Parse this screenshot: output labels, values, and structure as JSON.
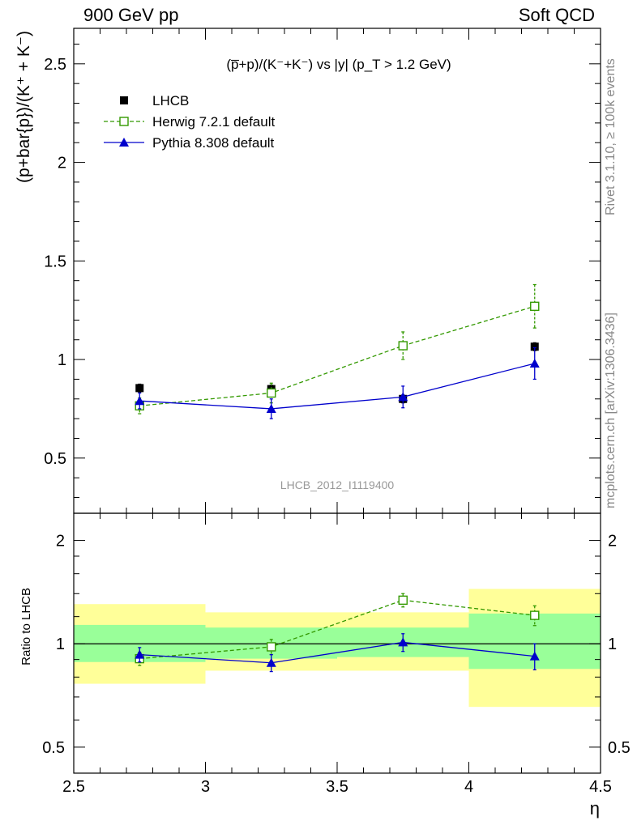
{
  "header": {
    "left": "900 GeV pp",
    "right": "Soft QCD"
  },
  "side_labels": {
    "rivet": "Rivet 3.1.10, ≥ 100k events",
    "mcplots": "mcplots.cern.ch [arXiv:1306.3436]"
  },
  "chart_data": [
    {
      "type": "scatter",
      "panel": "main",
      "title": "(p̅+p)/(K⁻+K⁻) vs |y| (p_T > 1.2 GeV)",
      "watermark": "LHCB_2012_I1119400",
      "xlabel": "η",
      "ylabel": "(p+bar{p})/(K⁺ + K⁻)",
      "xlim": [
        2.5,
        4.5
      ],
      "ylim": [
        0.22,
        2.68
      ],
      "xticks": [
        2.5,
        3,
        3.5,
        4,
        4.5
      ],
      "xtick_labels": [
        "2.5",
        "3",
        "3.5",
        "4",
        "4.5"
      ],
      "yticks": [
        0.5,
        1,
        1.5,
        2,
        2.5
      ],
      "ytick_labels": [
        "0.5",
        "1",
        "1.5",
        "2",
        "2.5"
      ],
      "legend_position": "top-left",
      "series": [
        {
          "name": "LHCB",
          "color": "#000000",
          "marker": "filled-square",
          "line": "none",
          "x": [
            2.75,
            3.25,
            3.75,
            4.25
          ],
          "y": [
            0.855,
            0.85,
            0.8,
            1.065
          ],
          "yerr": [
            0.02,
            0.02,
            0.02,
            0.02
          ]
        },
        {
          "name": "Herwig 7.2.1 default",
          "color": "#339900",
          "marker": "open-square",
          "line": "dashed",
          "x": [
            2.75,
            3.25,
            3.75,
            4.25
          ],
          "y": [
            0.765,
            0.83,
            1.07,
            1.27
          ],
          "yerr": [
            0.04,
            0.05,
            0.07,
            0.11
          ]
        },
        {
          "name": "Pythia 8.308 default",
          "color": "#0000cc",
          "marker": "filled-triangle",
          "line": "solid",
          "x": [
            2.75,
            3.25,
            3.75,
            4.25
          ],
          "y": [
            0.79,
            0.75,
            0.81,
            0.98
          ],
          "yerr": [
            0.04,
            0.05,
            0.055,
            0.08
          ]
        }
      ]
    },
    {
      "type": "scatter",
      "panel": "ratio",
      "ylabel": "Ratio to LHCB",
      "xlabel": "η",
      "xlim": [
        2.5,
        4.5
      ],
      "ylim": [
        0.42,
        2.4
      ],
      "yscale": "log",
      "yticks": [
        0.5,
        1,
        2
      ],
      "ytick_labels": [
        "0.5",
        "1",
        "2"
      ],
      "bands": [
        {
          "x0": 2.5,
          "x1": 3.0,
          "inner": [
            0.885,
            1.135
          ],
          "outer": [
            0.765,
            1.305
          ]
        },
        {
          "x0": 3.0,
          "x1": 3.5,
          "inner": [
            0.905,
            1.115
          ],
          "outer": [
            0.835,
            1.235
          ]
        },
        {
          "x0": 3.5,
          "x1": 4.0,
          "inner": [
            0.915,
            1.115
          ],
          "outer": [
            0.835,
            1.235
          ]
        },
        {
          "x0": 4.0,
          "x1": 4.5,
          "inner": [
            0.845,
            1.225
          ],
          "outer": [
            0.655,
            1.445
          ]
        }
      ],
      "band_colors": {
        "inner": "#99ff99",
        "outer": "#ffff99"
      },
      "series": [
        {
          "name": "Herwig 7.2.1 default",
          "color": "#339900",
          "marker": "open-square",
          "line": "dashed",
          "x": [
            2.75,
            3.25,
            3.75,
            4.25
          ],
          "y": [
            0.905,
            0.98,
            1.34,
            1.21
          ],
          "yerr": [
            0.04,
            0.05,
            0.06,
            0.08
          ]
        },
        {
          "name": "Pythia 8.308 default",
          "color": "#0000cc",
          "marker": "filled-triangle",
          "line": "solid",
          "x": [
            2.75,
            3.25,
            3.75,
            4.25
          ],
          "y": [
            0.93,
            0.88,
            1.01,
            0.92
          ],
          "yerr": [
            0.045,
            0.05,
            0.06,
            0.08
          ]
        }
      ]
    }
  ]
}
